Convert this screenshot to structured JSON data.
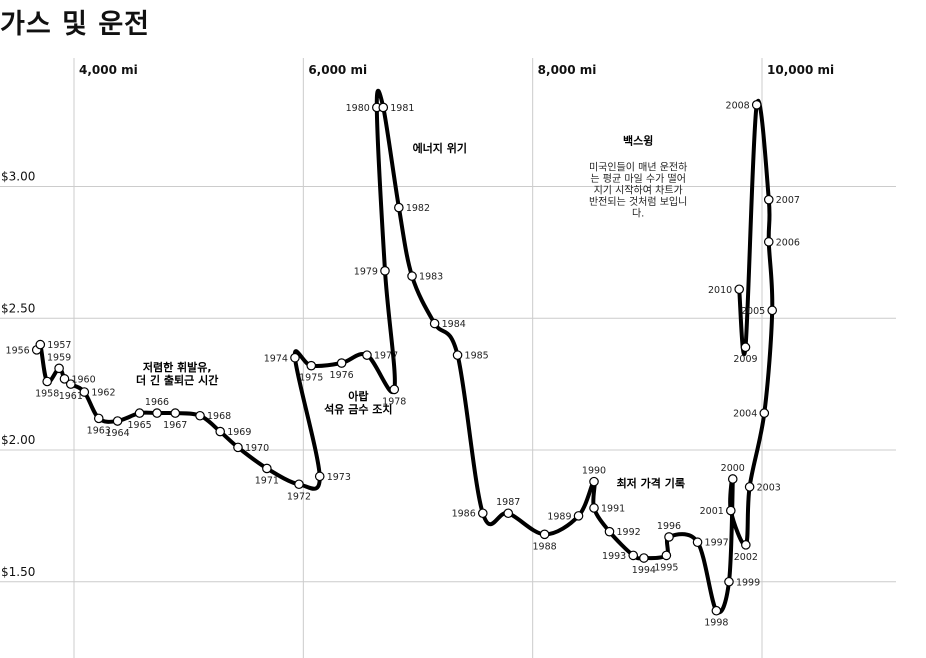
{
  "title": "가스 및 운전",
  "chart_data": {
    "type": "scatter",
    "title": "가스 및 운전",
    "connected": true,
    "x_unit": "mi",
    "xlim": [
      3000,
      10500
    ],
    "ylim": [
      1.25,
      3.55
    ],
    "x_ticks": [
      {
        "value": 4000,
        "label": "4,000 mi"
      },
      {
        "value": 6000,
        "label": "6,000 mi"
      },
      {
        "value": 8000,
        "label": "8,000 mi"
      },
      {
        "value": 10000,
        "label": "10,000 mi"
      }
    ],
    "y_ticks": [
      {
        "value": 1.5,
        "label": "$1.50"
      },
      {
        "value": 2.0,
        "label": "$2.00"
      },
      {
        "value": 2.5,
        "label": "$2.50"
      },
      {
        "value": 3.0,
        "label": "$3.00"
      }
    ],
    "points": [
      {
        "year": "1956",
        "x": 3675,
        "y": 2.38,
        "side": "left"
      },
      {
        "year": "1957",
        "x": 3706,
        "y": 2.4,
        "side": "right"
      },
      {
        "year": "1958",
        "x": 3766,
        "y": 2.26,
        "side": "below"
      },
      {
        "year": "1959",
        "x": 3870,
        "y": 2.31,
        "side": "above"
      },
      {
        "year": "1960",
        "x": 3917,
        "y": 2.27,
        "side": "right"
      },
      {
        "year": "1961",
        "x": 3972,
        "y": 2.25,
        "side": "below"
      },
      {
        "year": "1962",
        "x": 4090,
        "y": 2.22,
        "side": "right"
      },
      {
        "year": "1963",
        "x": 4216,
        "y": 2.12,
        "side": "below"
      },
      {
        "year": "1964",
        "x": 4380,
        "y": 2.11,
        "side": "below"
      },
      {
        "year": "1965",
        "x": 4572,
        "y": 2.14,
        "side": "below"
      },
      {
        "year": "1966",
        "x": 4724,
        "y": 2.14,
        "side": "above"
      },
      {
        "year": "1967",
        "x": 4883,
        "y": 2.14,
        "side": "below"
      },
      {
        "year": "1968",
        "x": 5099,
        "y": 2.13,
        "side": "right"
      },
      {
        "year": "1969",
        "x": 5275,
        "y": 2.07,
        "side": "right"
      },
      {
        "year": "1970",
        "x": 5430,
        "y": 2.01,
        "side": "right"
      },
      {
        "year": "1971",
        "x": 5682,
        "y": 1.93,
        "side": "below"
      },
      {
        "year": "1972",
        "x": 5962,
        "y": 1.87,
        "side": "below"
      },
      {
        "year": "1973",
        "x": 6143,
        "y": 1.9,
        "side": "right"
      },
      {
        "year": "1974",
        "x": 5927,
        "y": 2.35,
        "side": "left"
      },
      {
        "year": "1975",
        "x": 6069,
        "y": 2.32,
        "side": "below"
      },
      {
        "year": "1976",
        "x": 6334,
        "y": 2.33,
        "side": "below"
      },
      {
        "year": "1977",
        "x": 6555,
        "y": 2.36,
        "side": "right"
      },
      {
        "year": "1978",
        "x": 6793,
        "y": 2.23,
        "side": "below"
      },
      {
        "year": "1979",
        "x": 6712,
        "y": 2.68,
        "side": "left"
      },
      {
        "year": "1980",
        "x": 6641,
        "y": 3.3,
        "side": "left"
      },
      {
        "year": "1981",
        "x": 6697,
        "y": 3.3,
        "side": "right"
      },
      {
        "year": "1982",
        "x": 6833,
        "y": 2.92,
        "side": "right"
      },
      {
        "year": "1983",
        "x": 6948,
        "y": 2.66,
        "side": "right"
      },
      {
        "year": "1984",
        "x": 7145,
        "y": 2.48,
        "side": "right"
      },
      {
        "year": "1985",
        "x": 7345,
        "y": 2.36,
        "side": "right"
      },
      {
        "year": "1986",
        "x": 7565,
        "y": 1.76,
        "side": "left"
      },
      {
        "year": "1987",
        "x": 7787,
        "y": 1.76,
        "side": "above"
      },
      {
        "year": "1988",
        "x": 8104,
        "y": 1.68,
        "side": "below"
      },
      {
        "year": "1989",
        "x": 8400,
        "y": 1.75,
        "side": "left"
      },
      {
        "year": "1990",
        "x": 8535,
        "y": 1.88,
        "side": "above"
      },
      {
        "year": "1991",
        "x": 8535,
        "y": 1.78,
        "side": "right"
      },
      {
        "year": "1992",
        "x": 8670,
        "y": 1.69,
        "side": "right"
      },
      {
        "year": "1993",
        "x": 8877,
        "y": 1.6,
        "side": "left"
      },
      {
        "year": "1994",
        "x": 8970,
        "y": 1.59,
        "side": "below"
      },
      {
        "year": "1995",
        "x": 9166,
        "y": 1.6,
        "side": "below"
      },
      {
        "year": "1996",
        "x": 9189,
        "y": 1.67,
        "side": "above"
      },
      {
        "year": "1997",
        "x": 9438,
        "y": 1.65,
        "side": "right"
      },
      {
        "year": "1998",
        "x": 9602,
        "y": 1.39,
        "side": "below"
      },
      {
        "year": "1999",
        "x": 9712,
        "y": 1.5,
        "side": "right"
      },
      {
        "year": "2000",
        "x": 9745,
        "y": 1.89,
        "side": "above"
      },
      {
        "year": "2001",
        "x": 9728,
        "y": 1.77,
        "side": "left"
      },
      {
        "year": "2002",
        "x": 9859,
        "y": 1.64,
        "side": "below"
      },
      {
        "year": "2003",
        "x": 9892,
        "y": 1.86,
        "side": "right"
      },
      {
        "year": "2004",
        "x": 10020,
        "y": 2.14,
        "side": "left"
      },
      {
        "year": "2005",
        "x": 10089,
        "y": 2.53,
        "side": "left"
      },
      {
        "year": "2006",
        "x": 10059,
        "y": 2.79,
        "side": "right"
      },
      {
        "year": "2007",
        "x": 10059,
        "y": 2.95,
        "side": "right"
      },
      {
        "year": "2008",
        "x": 9954,
        "y": 3.31,
        "side": "left"
      },
      {
        "year": "2009",
        "x": 9856,
        "y": 2.39,
        "side": "below"
      },
      {
        "year": "2010",
        "x": 9801,
        "y": 2.61,
        "side": "left"
      }
    ],
    "annotations": [
      {
        "x": 4900,
        "y": 2.3,
        "lines": [
          "저렴한 휘발유,",
          "더 긴 출퇴근 시간"
        ],
        "style": "title"
      },
      {
        "x": 6480,
        "y": 2.19,
        "lines": [
          "아랍",
          "석유 금수 조치"
        ],
        "style": "title"
      },
      {
        "x": 7190,
        "y": 3.13,
        "lines": [
          "에너지 위기"
        ],
        "style": "title"
      },
      {
        "x": 9030,
        "y": 1.86,
        "lines": [
          "최저 가격 기록"
        ],
        "style": "title"
      },
      {
        "x": 8920,
        "y": 3.16,
        "lines": [
          "백스윙"
        ],
        "style": "title"
      },
      {
        "x": 8920,
        "y": 3.06,
        "lines": [
          "미국인들이 매년 운전하",
          "는 평균 마일 수가 떨어",
          "지기 시작하여 차트가",
          "반전되는 것처럼 보입니",
          "다."
        ],
        "style": "body"
      }
    ]
  }
}
